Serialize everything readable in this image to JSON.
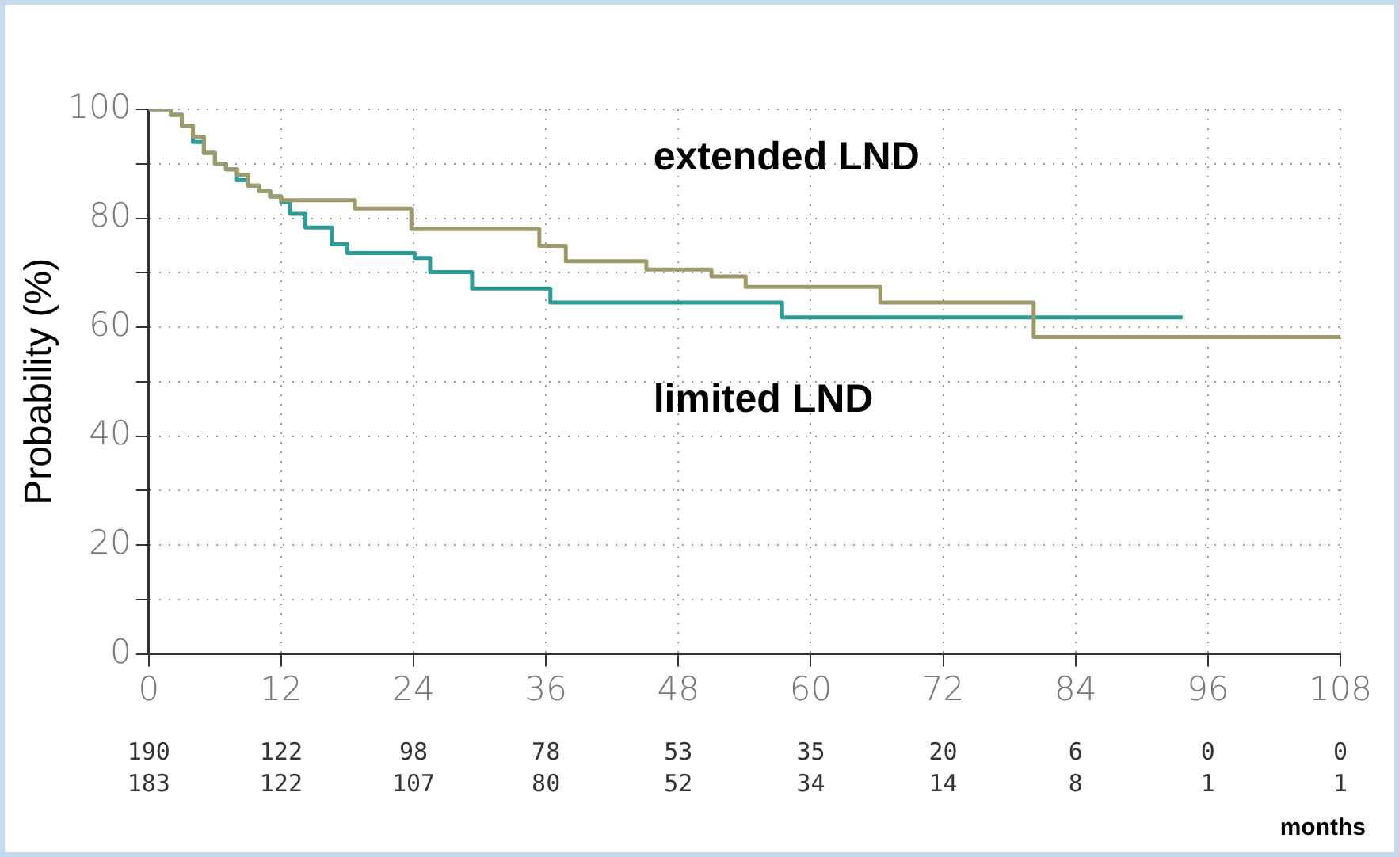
{
  "chart_data": {
    "type": "step",
    "ylabel": "Probability (%)",
    "xlabel": "months",
    "xlim": [
      0,
      108
    ],
    "xticks": [
      0,
      12,
      24,
      36,
      48,
      60,
      72,
      84,
      96,
      108
    ],
    "ylim": [
      0,
      100
    ],
    "yticks": [
      0,
      {
        "value": 10,
        "label": null
      },
      20,
      {
        "value": 30,
        "label": null
      },
      40,
      {
        "value": 50,
        "label": null
      },
      60,
      {
        "value": 70,
        "label": null
      },
      80,
      {
        "value": 90,
        "label": null
      },
      100
    ],
    "grid": true,
    "legend": false,
    "marker": "none",
    "line_style": "solid",
    "series": [
      {
        "name": "extended LND",
        "color": "#9e9a6c",
        "x": [
          0,
          2,
          3,
          4,
          5,
          6,
          7,
          8,
          9,
          10,
          11,
          12,
          18.7,
          23.8,
          35.4,
          37.8,
          45.1,
          51,
          54.1,
          66.3,
          80.2,
          108
        ],
        "values": [
          100,
          99,
          97,
          95,
          92,
          90,
          89,
          88,
          86,
          85,
          84,
          83.3,
          81.8,
          78,
          74.9,
          72.1,
          70.6,
          69.3,
          67.4,
          64.5,
          58.2,
          58.2
        ]
      },
      {
        "name": "limited LND",
        "color": "#2a9d98",
        "x": [
          0,
          2,
          3,
          4,
          5,
          6,
          7,
          8,
          9,
          10,
          11,
          12,
          12.8,
          14.2,
          16.6,
          18,
          24.1,
          25.5,
          29.3,
          36.4,
          57.4,
          93.7
        ],
        "values": [
          100,
          99,
          97,
          94,
          92,
          90,
          89,
          87,
          86,
          85,
          84,
          83,
          80.8,
          78.3,
          75.2,
          73.6,
          72.7,
          70.1,
          67.1,
          64.5,
          61.8,
          61.8
        ]
      }
    ],
    "annotations": [
      "190 122 98 78 53 35 20 6 0 0",
      "183 122 107 80 52 34 14 8 1 1"
    ]
  }
}
